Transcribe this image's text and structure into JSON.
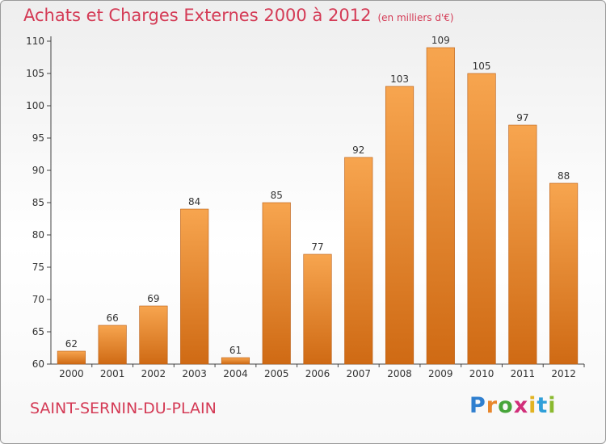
{
  "header": {
    "title": "Achats et Charges Externes 2000 à 2012",
    "unit": "(en milliers d'€)"
  },
  "commune": "SAINT-SERNIN-DU-PLAIN",
  "logo": {
    "text": "Proxiti",
    "letter_colors": [
      "#2f7fcf",
      "#e8862b",
      "#47a53a",
      "#d12f7a",
      "#e2b321",
      "#2f9fd9",
      "#8ab92f"
    ]
  },
  "colors": {
    "bar_light": "#f7a54f",
    "bar_dark": "#cf6a14",
    "bar_stroke": "#b95c12",
    "axis": "#444444",
    "grid": "#d5d5d5",
    "title": "#d43a55"
  },
  "chart_data": {
    "type": "bar",
    "title": "Achats et Charges Externes 2000 à 2012",
    "subtitle": "(en milliers d'€)",
    "categories": [
      "2000",
      "2001",
      "2002",
      "2003",
      "2004",
      "2005",
      "2006",
      "2007",
      "2008",
      "2009",
      "2010",
      "2011",
      "2012"
    ],
    "values": [
      62,
      66,
      69,
      84,
      61,
      85,
      77,
      92,
      103,
      109,
      105,
      97,
      88
    ],
    "ylim": [
      60,
      110
    ],
    "yticks": [
      60,
      65,
      70,
      75,
      80,
      85,
      90,
      95,
      100,
      105,
      110
    ],
    "xlabel": "",
    "ylabel": "",
    "grid": false,
    "data_labels": true
  }
}
